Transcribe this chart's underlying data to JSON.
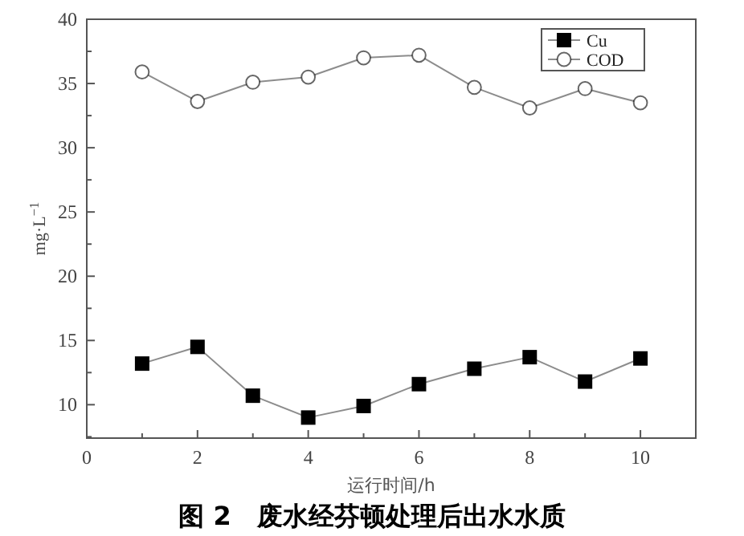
{
  "chart_data": {
    "type": "line",
    "title": "图 2　废水经芬顿处理后出水水质",
    "xlabel": "运行时间/h",
    "ylabel": "mg·L$^{−1}$",
    "x": [
      1,
      2,
      3,
      4,
      5,
      6,
      7,
      8,
      9,
      10
    ],
    "series": [
      {
        "name": "Cu",
        "color": "#000000",
        "marker": "square",
        "values": [
          13.2,
          14.5,
          10.7,
          9.0,
          9.9,
          11.6,
          12.8,
          13.7,
          11.8,
          13.6
        ]
      },
      {
        "name": "COD",
        "color": "#000000",
        "marker": "circle",
        "values": [
          35.9,
          33.6,
          35.1,
          35.5,
          37.0,
          37.2,
          34.7,
          33.1,
          34.6,
          33.5
        ]
      }
    ],
    "xlim": [
      0,
      11
    ],
    "ylim": [
      7.4,
      40
    ],
    "xticks": [
      0,
      {
        "value": 1,
        "label": null
      },
      2,
      {
        "value": 3,
        "label": null
      },
      4,
      {
        "value": 5,
        "label": null
      },
      6,
      {
        "value": 7,
        "label": null
      },
      8,
      {
        "value": 9,
        "label": null
      },
      10
    ],
    "yticks": [
      {
        "value": 7.5,
        "label": null
      },
      10,
      {
        "value": 12.5,
        "label": null
      },
      15,
      {
        "value": 17.5,
        "label": null
      },
      20,
      {
        "value": 22.5,
        "label": null
      },
      25,
      {
        "value": 27.5,
        "label": null
      },
      30,
      {
        "value": 32.5,
        "label": null
      },
      35,
      {
        "value": 37.5,
        "label": null
      },
      40
    ],
    "grid": false,
    "legend": "top right"
  }
}
